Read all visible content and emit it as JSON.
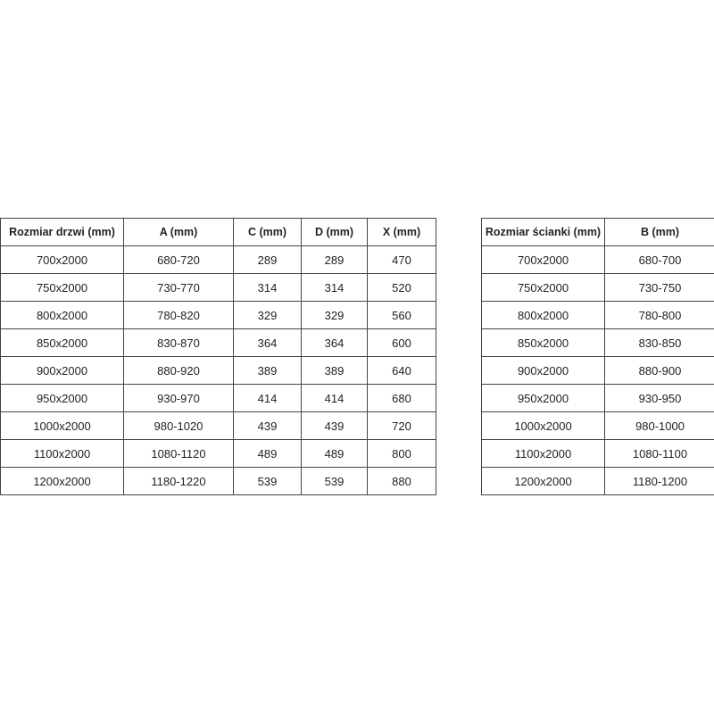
{
  "door_table": {
    "headers": [
      "Rozmiar drzwi (mm)",
      "A (mm)",
      "C (mm)",
      "D (mm)",
      "X (mm)"
    ],
    "rows": [
      [
        "700x2000",
        "680-720",
        "289",
        "289",
        "470"
      ],
      [
        "750x2000",
        "730-770",
        "314",
        "314",
        "520"
      ],
      [
        "800x2000",
        "780-820",
        "329",
        "329",
        "560"
      ],
      [
        "850x2000",
        "830-870",
        "364",
        "364",
        "600"
      ],
      [
        "900x2000",
        "880-920",
        "389",
        "389",
        "640"
      ],
      [
        "950x2000",
        "930-970",
        "414",
        "414",
        "680"
      ],
      [
        "1000x2000",
        "980-1020",
        "439",
        "439",
        "720"
      ],
      [
        "1100x2000",
        "1080-1120",
        "489",
        "489",
        "800"
      ],
      [
        "1200x2000",
        "1180-1220",
        "539",
        "539",
        "880"
      ]
    ]
  },
  "wall_table": {
    "headers": [
      "Rozmiar ścianki (mm)",
      "B (mm)"
    ],
    "rows": [
      [
        "700x2000",
        "680-700"
      ],
      [
        "750x2000",
        "730-750"
      ],
      [
        "800x2000",
        "780-800"
      ],
      [
        "850x2000",
        "830-850"
      ],
      [
        "900x2000",
        "880-900"
      ],
      [
        "950x2000",
        "930-950"
      ],
      [
        "1000x2000",
        "980-1000"
      ],
      [
        "1100x2000",
        "1080-1100"
      ],
      [
        "1200x2000",
        "1180-1200"
      ]
    ]
  }
}
